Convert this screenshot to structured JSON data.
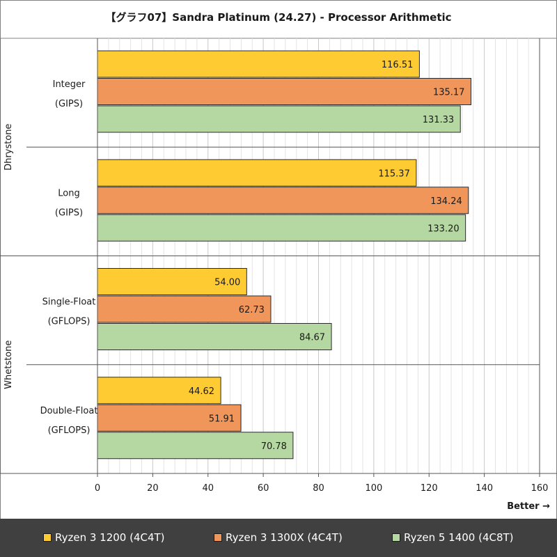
{
  "colors": {
    "series": [
      "#fecb33",
      "#f0965a",
      "#b5d8a2"
    ],
    "grid": "#e3e3e3",
    "axis": "#555555",
    "legend_bg": "#404040"
  },
  "chart_data": {
    "type": "bar",
    "orientation": "horizontal",
    "title": "【グラフ07】Sandra Platinum (24.27) - Processor Arithmetic",
    "groups": [
      {
        "label": "Dhrystone",
        "categories": [
          0,
          1
        ]
      },
      {
        "label": "Whetstone",
        "categories": [
          2,
          3
        ]
      }
    ],
    "categories": [
      {
        "name": "Integer",
        "unit": "(GIPS)"
      },
      {
        "name": "Long",
        "unit": "(GIPS)"
      },
      {
        "name": "Single-Float",
        "unit": "(GFLOPS)"
      },
      {
        "name": "Double-Float",
        "unit": "(GFLOPS)"
      }
    ],
    "series": [
      {
        "name": "Ryzen 3 1200 (4C4T)",
        "values": [
          116.51,
          115.37,
          54.0,
          44.62
        ],
        "labels": [
          "116.51",
          "115.37",
          "54.00",
          "44.62"
        ]
      },
      {
        "name": "Ryzen 3 1300X (4C4T)",
        "values": [
          135.17,
          134.24,
          62.73,
          51.91
        ],
        "labels": [
          "135.17",
          "134.24",
          "62.73",
          "51.91"
        ]
      },
      {
        "name": "Ryzen 5 1400 (4C8T)",
        "values": [
          131.33,
          133.2,
          84.67,
          70.78
        ],
        "labels": [
          "131.33",
          "133.20",
          "84.67",
          "70.78"
        ]
      }
    ],
    "xlim": [
      0,
      160
    ],
    "xticks": [
      0,
      20,
      40,
      60,
      80,
      100,
      120,
      140,
      160
    ],
    "minor_grid_step": 4,
    "xlabel": "Better →",
    "legend_position": "bottom"
  }
}
